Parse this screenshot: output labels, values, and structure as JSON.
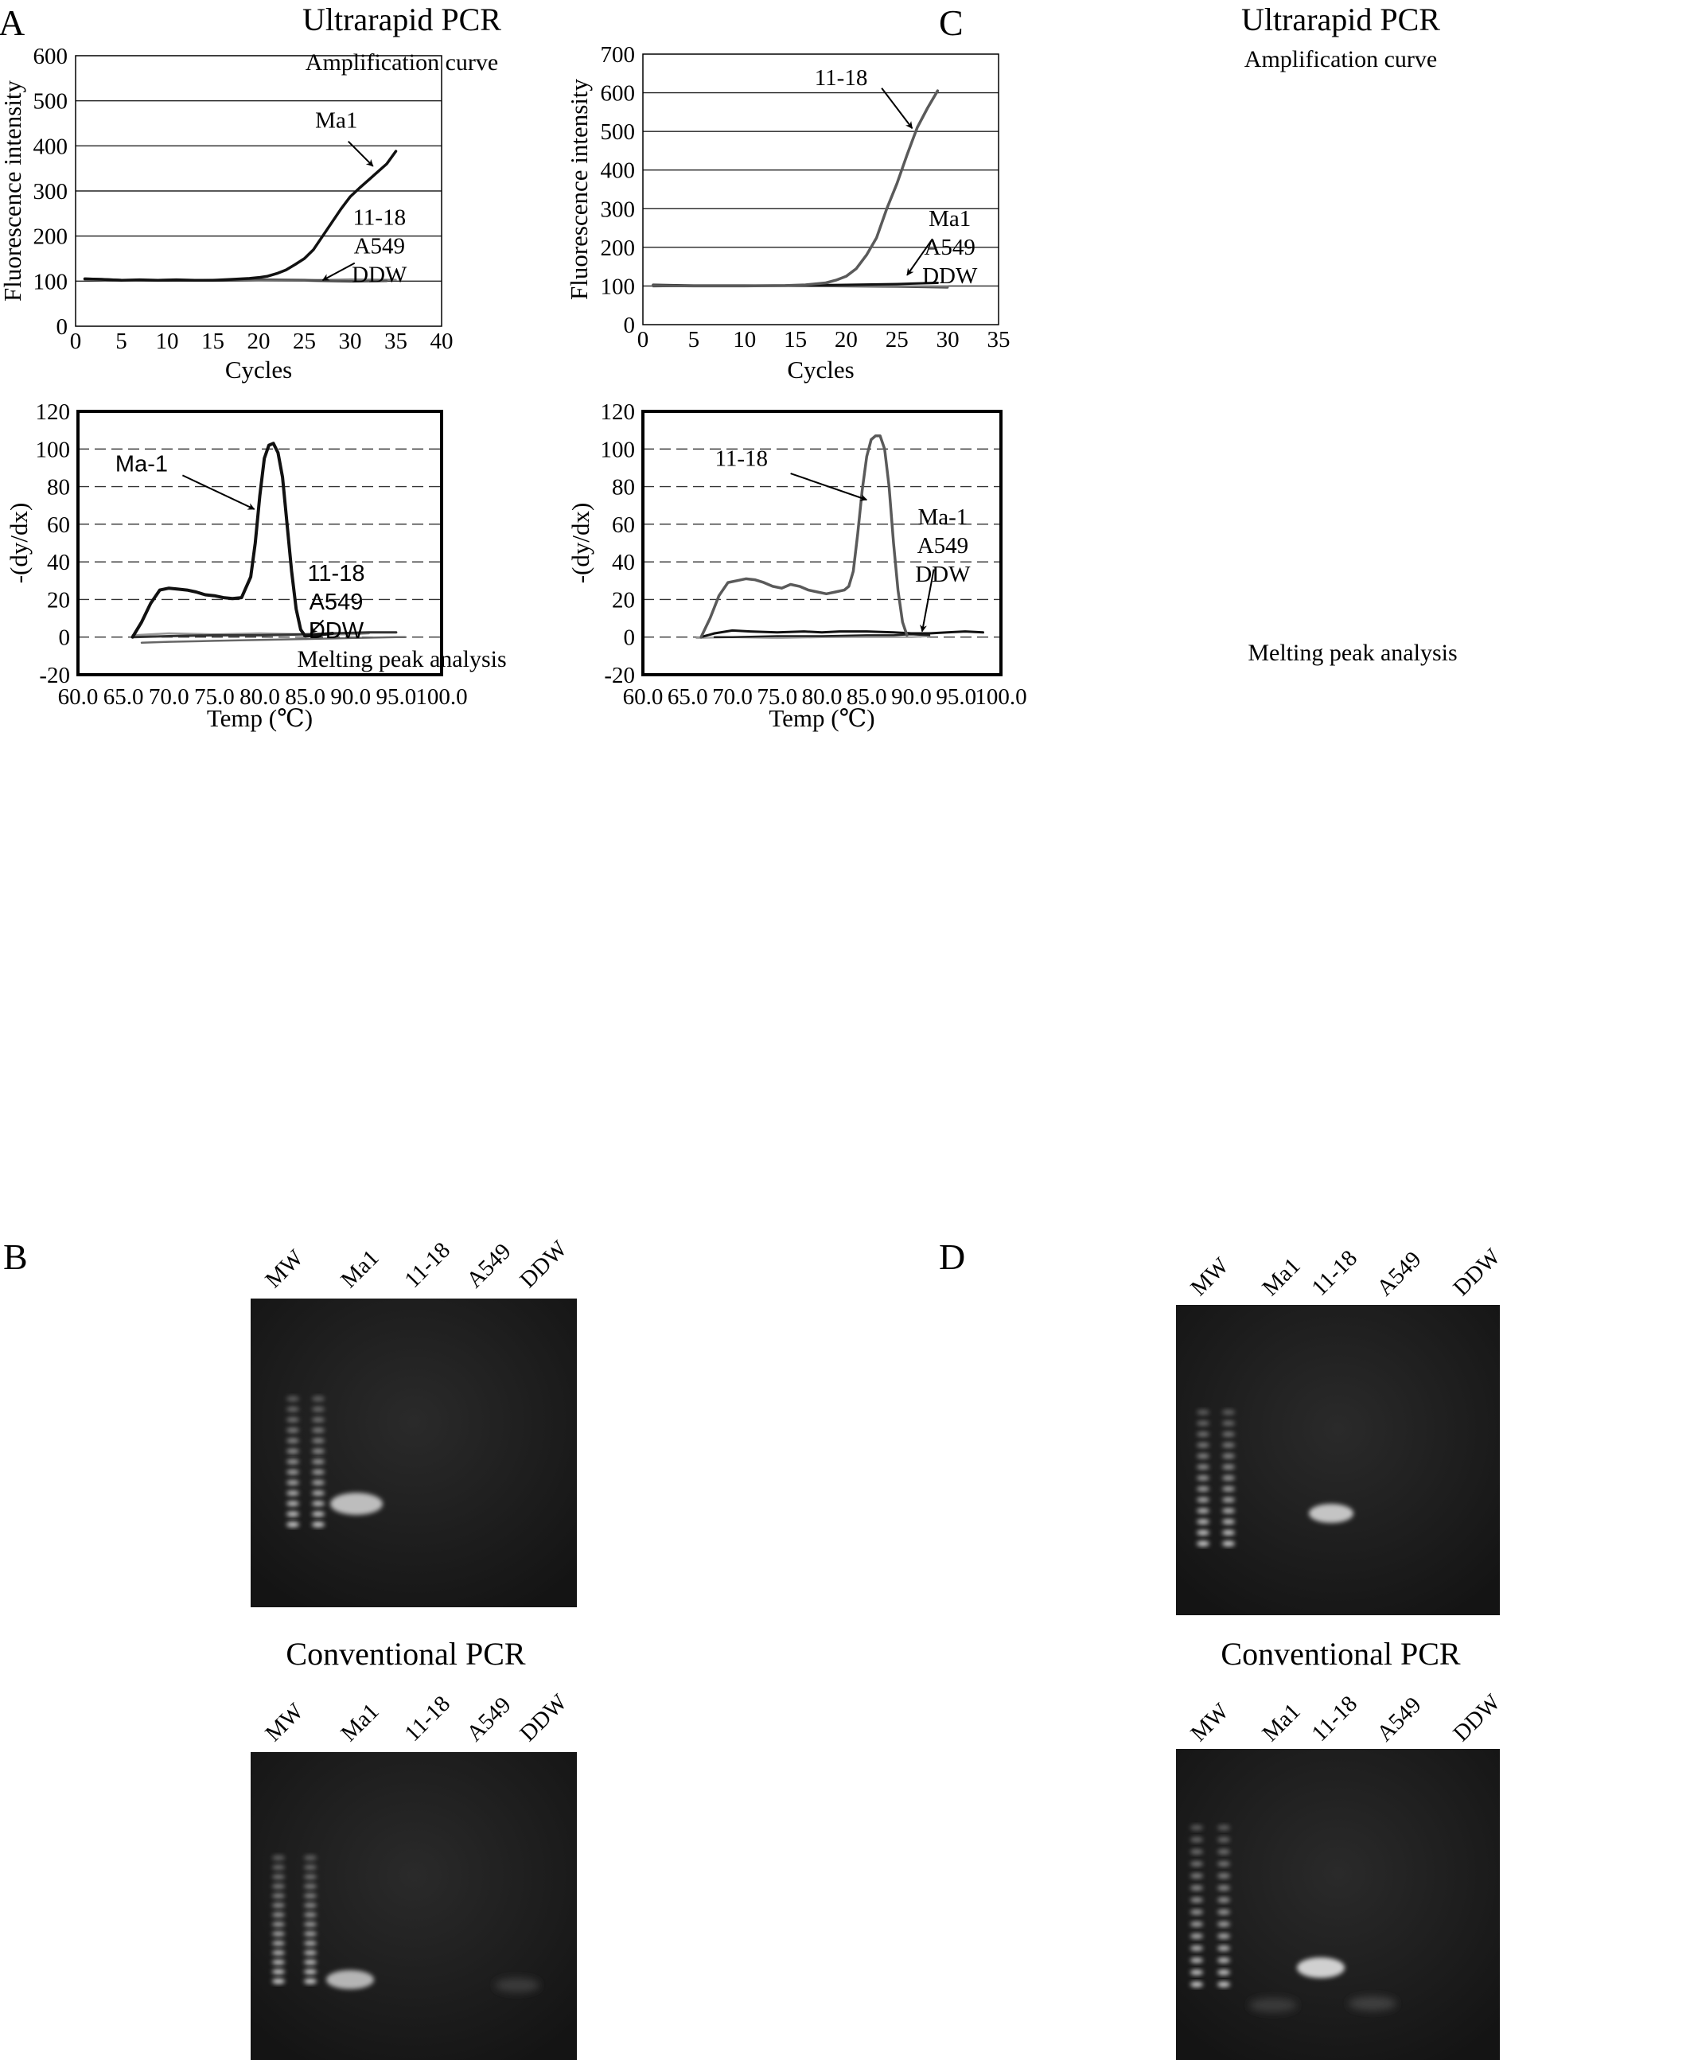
{
  "panels": {
    "A": {
      "letter": "A",
      "title": "Ultrarapid PCR",
      "subtitle": "Amplification curve",
      "melt_title": "Melting peak analysis"
    },
    "B": {
      "letter": "B",
      "conventional_title": "Conventional PCR",
      "lanes": [
        "MW",
        "Ma1",
        "11-18",
        "A549",
        "DDW"
      ]
    },
    "C": {
      "letter": "C",
      "title": "Ultrarapid PCR",
      "subtitle": "Amplification curve",
      "melt_title": "Melting peak analysis"
    },
    "D": {
      "letter": "D",
      "conventional_title": "Conventional PCR",
      "lanes": [
        "MW",
        "Ma1",
        "11-18",
        "A549",
        "DDW"
      ]
    }
  },
  "chart_data": [
    {
      "id": "A-amp",
      "type": "line",
      "title": "Amplification curve",
      "xlabel": "Cycles",
      "ylabel": "Fluorescence intensity",
      "xlim": [
        0,
        40
      ],
      "ylim": [
        0,
        600
      ],
      "xticks": [
        "0",
        "5",
        "10",
        "15",
        "20",
        "25",
        "30",
        "35",
        "40"
      ],
      "yticks": [
        "0",
        "100",
        "200",
        "300",
        "400",
        "500",
        "600"
      ],
      "grid": "horizontal solid",
      "annotations": [
        {
          "lines": [
            "Ma1"
          ],
          "text_at": [
            28.5,
            440
          ],
          "arrow_from": [
            29.8,
            410
          ],
          "arrow_to": [
            32.5,
            355
          ]
        },
        {
          "lines": [
            "11-18",
            "A549",
            "DDW"
          ],
          "text_at": [
            33.2,
            225
          ],
          "arrow_from": [
            30.5,
            140
          ],
          "arrow_to": [
            27.0,
            102
          ]
        }
      ],
      "series": [
        {
          "label": "Ma1",
          "color": "#111111",
          "width": 3.5,
          "x": [
            1,
            3,
            5,
            7,
            9,
            11,
            13,
            15,
            17,
            19,
            20,
            21,
            22,
            23,
            24,
            25,
            26,
            27,
            28,
            29,
            30,
            31,
            32,
            33,
            34,
            35
          ],
          "y": [
            105,
            104,
            102,
            103,
            102,
            103,
            102,
            102,
            104,
            106,
            108,
            111,
            117,
            125,
            137,
            150,
            170,
            200,
            230,
            260,
            287,
            306,
            324,
            342,
            360,
            388
          ]
        },
        {
          "label": "11-18",
          "color": "#555555",
          "width": 2.5,
          "x": [
            1,
            5,
            10,
            15,
            20,
            25,
            30,
            34
          ],
          "y": [
            104,
            102,
            103,
            102,
            104,
            103,
            100,
            101
          ]
        },
        {
          "label": "A549",
          "color": "#888888",
          "width": 2.5,
          "x": [
            1,
            5,
            10,
            15,
            20,
            25,
            30,
            35
          ],
          "y": [
            103,
            101,
            102,
            103,
            101,
            102,
            104,
            103
          ]
        },
        {
          "label": "DDW",
          "color": "#333333",
          "width": 2.5,
          "x": [
            1,
            5,
            10,
            15,
            20,
            25,
            30,
            34
          ],
          "y": [
            106,
            103,
            102,
            101,
            102,
            101,
            99,
            100
          ]
        }
      ]
    },
    {
      "id": "A-melt",
      "type": "line",
      "title": "Melting peak analysis",
      "xlabel": "Temp (℃)",
      "ylabel": "-(dy/dx)",
      "xlim": [
        60,
        100
      ],
      "ylim": [
        -20,
        120
      ],
      "xticks": [
        "60.0",
        "65.0",
        "70.0",
        "75.0",
        "80.0",
        "85.0",
        "90.0",
        "95.0",
        "100.0"
      ],
      "yticks": [
        "-20",
        "0",
        "20",
        "40",
        "60",
        "80",
        "100",
        "120"
      ],
      "grid": "horizontal dashed",
      "annotations": [
        {
          "lines": [
            "Ma-1"
          ],
          "text_at": [
            67.0,
            88
          ],
          "arrow_from": [
            71.5,
            86
          ],
          "arrow_to": [
            79.4,
            68
          ],
          "sans": true
        },
        {
          "lines": [
            "11-18",
            "A549",
            "DDW"
          ],
          "text_at": [
            88.4,
            30
          ],
          "arrow_from": [
            87.0,
            9
          ],
          "arrow_to": [
            85.6,
            2
          ],
          "sans": true
        }
      ],
      "series": [
        {
          "label": "Ma-1",
          "color": "#111111",
          "width": 4,
          "x": [
            66,
            67,
            68,
            69,
            70,
            71,
            72,
            73,
            74,
            75,
            76,
            77,
            78,
            79,
            79.5,
            80,
            80.5,
            81,
            81.5,
            82,
            82.5,
            83,
            83.5,
            84,
            84.5,
            85,
            86,
            87,
            88
          ],
          "y": [
            0,
            8,
            18,
            25,
            26,
            25.5,
            25,
            24,
            22.5,
            22,
            21,
            20.5,
            21,
            32,
            50,
            75,
            95,
            102,
            103,
            98,
            85,
            60,
            35,
            15,
            4,
            0.5,
            1,
            1.5,
            2
          ]
        },
        {
          "label": "11-18",
          "color": "#333333",
          "width": 3,
          "x": [
            66,
            70,
            75,
            80,
            85,
            88,
            92,
            95
          ],
          "y": [
            0,
            0.5,
            1,
            1,
            1.5,
            2,
            2.5,
            2.5
          ]
        },
        {
          "label": "A549",
          "color": "#666666",
          "width": 2.5,
          "x": [
            67,
            70,
            75,
            80,
            85,
            90,
            95,
            96
          ],
          "y": [
            -3,
            -2.5,
            -2,
            -1.5,
            -1,
            -0.5,
            0,
            0
          ]
        },
        {
          "label": "DDW",
          "color": "#999999",
          "width": 2.5,
          "x": [
            66,
            70,
            75,
            80,
            85,
            90,
            92
          ],
          "y": [
            1,
            2,
            1.5,
            2,
            1.5,
            1.5,
            2
          ]
        }
      ]
    },
    {
      "id": "C-amp",
      "type": "line",
      "title": "Amplification curve",
      "xlabel": "Cycles",
      "ylabel": "Fluorescence intensity",
      "xlim": [
        0,
        35
      ],
      "ylim": [
        0,
        700
      ],
      "xticks": [
        "0",
        "5",
        "10",
        "15",
        "20",
        "25",
        "30",
        "35"
      ],
      "yticks": [
        "0",
        "100",
        "200",
        "300",
        "400",
        "500",
        "600",
        "700"
      ],
      "grid": "horizontal solid",
      "annotations": [
        {
          "lines": [
            "11-18"
          ],
          "text_at": [
            19.5,
            620
          ],
          "arrow_from": [
            23.5,
            612
          ],
          "arrow_to": [
            26.5,
            508
          ]
        },
        {
          "lines": [
            "Ma1",
            "A549",
            "DDW"
          ],
          "text_at": [
            30.2,
            255
          ],
          "arrow_from": [
            28.5,
            222
          ],
          "arrow_to": [
            26.0,
            128
          ]
        }
      ],
      "series": [
        {
          "label": "11-18",
          "color": "#5a5a5a",
          "width": 3.5,
          "x": [
            1,
            5,
            10,
            14,
            16,
            18,
            19,
            20,
            21,
            22,
            23,
            24,
            25,
            26,
            27,
            28,
            29
          ],
          "y": [
            101,
            100,
            100,
            101,
            103,
            108,
            115,
            125,
            145,
            180,
            225,
            300,
            365,
            440,
            510,
            560,
            605
          ]
        },
        {
          "label": "Ma1",
          "color": "#111111",
          "width": 3,
          "x": [
            1,
            5,
            10,
            15,
            20,
            25,
            29
          ],
          "y": [
            103,
            101,
            101,
            101,
            103,
            105,
            108
          ]
        },
        {
          "label": "A549",
          "color": "#777777",
          "width": 2.5,
          "x": [
            1,
            5,
            10,
            15,
            20,
            25,
            30
          ],
          "y": [
            101,
            101,
            100,
            100,
            100,
            99,
            98
          ]
        },
        {
          "label": "DDW",
          "color": "#333333",
          "width": 2.5,
          "x": [
            1,
            5,
            10,
            15,
            20,
            25,
            30
          ],
          "y": [
            99,
            100,
            100,
            100,
            99,
            98,
            96
          ]
        }
      ]
    },
    {
      "id": "C-melt",
      "type": "line",
      "title": "Melting peak analysis",
      "xlabel": "Temp (℃)",
      "ylabel": "-(dy/dx)",
      "xlim": [
        60,
        100
      ],
      "ylim": [
        -20,
        120
      ],
      "xticks": [
        "60.0",
        "65.0",
        "70.0",
        "75.0",
        "80.0",
        "85.0",
        "90.0",
        "95.0",
        "100.0"
      ],
      "yticks": [
        "-20",
        "0",
        "20",
        "40",
        "60",
        "80",
        "100",
        "120"
      ],
      "grid": "horizontal dashed",
      "annotations": [
        {
          "lines": [
            "11-18"
          ],
          "text_at": [
            71.0,
            91
          ],
          "arrow_from": [
            76.5,
            87
          ],
          "arrow_to": [
            85.0,
            73
          ]
        },
        {
          "lines": [
            "Ma-1",
            "A549",
            "DDW"
          ],
          "text_at": [
            93.5,
            60
          ],
          "arrow_from": [
            92.5,
            36
          ],
          "arrow_to": [
            91.2,
            3
          ]
        }
      ],
      "series": [
        {
          "label": "11-18",
          "color": "#5a5a5a",
          "width": 3.5,
          "x": [
            66.5,
            67.5,
            68.5,
            69.5,
            70.5,
            71.5,
            72.5,
            73.5,
            74.5,
            75.5,
            76.5,
            77.5,
            78.5,
            79.5,
            80.5,
            81.5,
            82.5,
            83,
            83.5,
            84,
            84.5,
            85,
            85.5,
            86,
            86.5,
            87,
            87.5,
            88,
            88.5,
            89,
            89.5
          ],
          "y": [
            0,
            10,
            22,
            29,
            30,
            31,
            30.5,
            29,
            27,
            26,
            28,
            27,
            25,
            24,
            23,
            24,
            25,
            27,
            35,
            55,
            78,
            96,
            105,
            107,
            107,
            100,
            80,
            50,
            25,
            8,
            1
          ]
        },
        {
          "label": "Ma-1",
          "color": "#111111",
          "width": 3,
          "x": [
            66.5,
            68,
            70,
            72,
            75,
            78,
            80,
            82,
            85,
            88,
            90,
            92,
            94,
            96,
            98
          ],
          "y": [
            0,
            2,
            3.5,
            3,
            2.5,
            3,
            2.5,
            3,
            3,
            2.5,
            2,
            2,
            2.5,
            3,
            2.5
          ]
        },
        {
          "label": "A549",
          "color": "#222222",
          "width": 2.5,
          "x": [
            68,
            70,
            75,
            80,
            85,
            88,
            90,
            92
          ],
          "y": [
            0,
            0,
            0.5,
            0.5,
            1,
            1,
            1.5,
            1
          ]
        },
        {
          "label": "DDW",
          "color": "#aaaaaa",
          "width": 2.5,
          "x": [
            66,
            70,
            75,
            80,
            85,
            90,
            92
          ],
          "y": [
            -0.5,
            0,
            -0.5,
            0,
            0,
            0,
            0.5
          ]
        }
      ]
    }
  ]
}
